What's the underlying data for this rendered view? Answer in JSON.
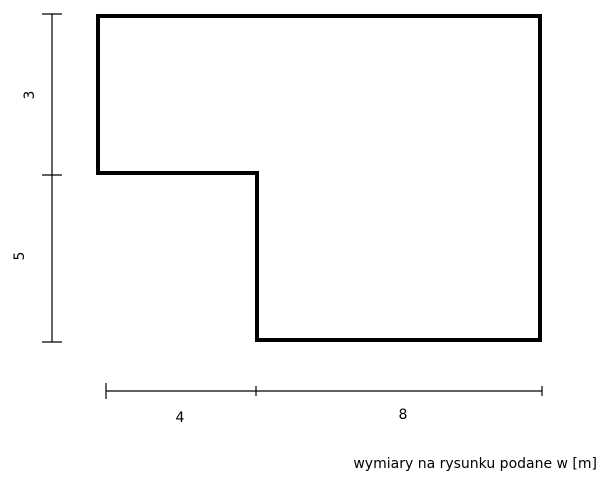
{
  "shape": {
    "dimensions": {
      "left_upper": "3",
      "left_lower": "5",
      "bottom_left": "4",
      "bottom_right": "8"
    }
  },
  "caption": "wymiary na rysunku podane w [m]"
}
